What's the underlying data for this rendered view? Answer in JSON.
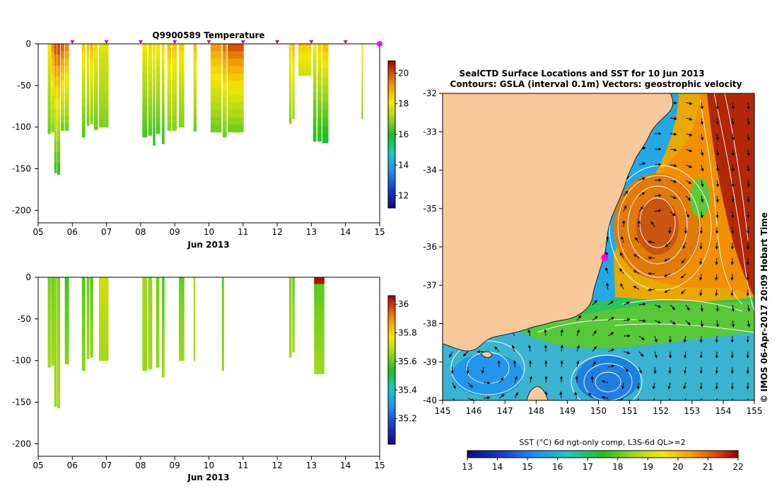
{
  "colors": {
    "land": "#f9c89b",
    "frame": "#000000",
    "marker": "#ff00ff",
    "white_contour": "#ffffff"
  },
  "chart_data": [
    {
      "type": "heatmap",
      "id": "temperature-section",
      "title": "Q9900589  Temperature",
      "xlabel": "Jun 2013",
      "xticks": [
        "05",
        "06",
        "07",
        "08",
        "09",
        "10",
        "11",
        "12",
        "13",
        "14",
        "15"
      ],
      "x_range": [
        5,
        15
      ],
      "y_range": [
        -215,
        0
      ],
      "yticks": [
        0,
        -50,
        -100,
        -150,
        -200
      ],
      "colorbar": {
        "min": 11.2,
        "max": 20.8,
        "ticks": [
          12,
          14,
          16,
          18,
          20
        ],
        "colormap": "jet"
      },
      "markers_x": [
        6,
        7,
        8,
        9,
        10,
        11,
        12,
        13,
        14,
        15
      ],
      "profiles": [
        {
          "x": 5.28,
          "w": 0.09,
          "depth": 108,
          "top": 18.2,
          "bottom": 16.6
        },
        {
          "x": 5.38,
          "w": 0.09,
          "depth": 106,
          "top": 19.5,
          "bottom": 16.8
        },
        {
          "x": 5.47,
          "w": 0.08,
          "depth": 155,
          "top": 20.2,
          "bottom": 16.2
        },
        {
          "x": 5.56,
          "w": 0.08,
          "depth": 157,
          "top": 20.4,
          "bottom": 16.0
        },
        {
          "x": 5.66,
          "w": 0.1,
          "depth": 104,
          "top": 20.1,
          "bottom": 16.6
        },
        {
          "x": 5.78,
          "w": 0.12,
          "depth": 104,
          "top": 19.6,
          "bottom": 16.6
        },
        {
          "x": 6.28,
          "w": 0.1,
          "depth": 112,
          "top": 18.6,
          "bottom": 16.4
        },
        {
          "x": 6.42,
          "w": 0.08,
          "depth": 98,
          "top": 18.8,
          "bottom": 16.6
        },
        {
          "x": 6.52,
          "w": 0.09,
          "depth": 96,
          "top": 19.0,
          "bottom": 16.8
        },
        {
          "x": 6.63,
          "w": 0.12,
          "depth": 103,
          "top": 18.4,
          "bottom": 16.6
        },
        {
          "x": 6.78,
          "w": 0.28,
          "depth": 100,
          "top": 18.0,
          "bottom": 16.8
        },
        {
          "x": 8.05,
          "w": 0.14,
          "depth": 112,
          "top": 18.2,
          "bottom": 16.3
        },
        {
          "x": 8.22,
          "w": 0.12,
          "depth": 110,
          "top": 18.4,
          "bottom": 16.4
        },
        {
          "x": 8.36,
          "w": 0.07,
          "depth": 122,
          "top": 18.5,
          "bottom": 16.0
        },
        {
          "x": 8.45,
          "w": 0.12,
          "depth": 108,
          "top": 18.3,
          "bottom": 16.4
        },
        {
          "x": 8.62,
          "w": 0.08,
          "depth": 120,
          "top": 18.5,
          "bottom": 16.2
        },
        {
          "x": 8.78,
          "w": 0.12,
          "depth": 104,
          "top": 18.8,
          "bottom": 16.8
        },
        {
          "x": 8.92,
          "w": 0.14,
          "depth": 104,
          "top": 18.7,
          "bottom": 16.8
        },
        {
          "x": 9.12,
          "w": 0.16,
          "depth": 100,
          "top": 18.5,
          "bottom": 16.8
        },
        {
          "x": 9.55,
          "w": 0.09,
          "depth": 105,
          "top": 18.9,
          "bottom": 16.6
        },
        {
          "x": 10.05,
          "w": 0.32,
          "depth": 106,
          "top": 19.4,
          "bottom": 16.6
        },
        {
          "x": 10.4,
          "w": 0.12,
          "depth": 112,
          "top": 19.8,
          "bottom": 16.6
        },
        {
          "x": 10.55,
          "w": 0.47,
          "depth": 106,
          "top": 20.2,
          "bottom": 16.6
        },
        {
          "x": 12.35,
          "w": 0.07,
          "depth": 96,
          "top": 18.6,
          "bottom": 16.8
        },
        {
          "x": 12.44,
          "w": 0.07,
          "depth": 90,
          "top": 18.9,
          "bottom": 17.0
        },
        {
          "x": 12.62,
          "w": 0.38,
          "depth": 38,
          "top": 18.6,
          "bottom": 17.6
        },
        {
          "x": 13.05,
          "w": 0.1,
          "depth": 117,
          "top": 18.3,
          "bottom": 16.0
        },
        {
          "x": 13.18,
          "w": 0.12,
          "depth": 117,
          "top": 18.6,
          "bottom": 16.0
        },
        {
          "x": 13.32,
          "w": 0.18,
          "depth": 119,
          "top": 18.9,
          "bottom": 15.8
        },
        {
          "x": 14.47,
          "w": 0.04,
          "depth": 90,
          "top": 18.4,
          "bottom": 16.8
        }
      ]
    },
    {
      "type": "heatmap",
      "id": "salinity-section",
      "title": "",
      "xlabel": "Jun 2013",
      "xticks": [
        "05",
        "06",
        "07",
        "08",
        "09",
        "10",
        "11",
        "12",
        "13",
        "14",
        "15"
      ],
      "x_range": [
        5,
        15
      ],
      "y_range": [
        -215,
        0
      ],
      "yticks": [
        0,
        -50,
        -100,
        -150,
        -200
      ],
      "colorbar": {
        "min": 35.02,
        "max": 36.06,
        "ticks": [
          35.2,
          35.4,
          35.6,
          35.8,
          36
        ],
        "colormap": "jet"
      },
      "profiles": [
        {
          "x": 5.28,
          "w": 0.09,
          "depth": 108,
          "top": 35.62,
          "bottom": 35.66
        },
        {
          "x": 5.38,
          "w": 0.09,
          "depth": 106,
          "top": 35.6,
          "bottom": 35.66
        },
        {
          "x": 5.47,
          "w": 0.08,
          "depth": 155,
          "top": 35.64,
          "bottom": 35.66
        },
        {
          "x": 5.56,
          "w": 0.08,
          "depth": 157,
          "top": 35.62,
          "bottom": 35.67
        },
        {
          "x": 5.78,
          "w": 0.12,
          "depth": 104,
          "top": 35.56,
          "bottom": 35.64
        },
        {
          "x": 6.28,
          "w": 0.1,
          "depth": 112,
          "top": 35.58,
          "bottom": 35.64
        },
        {
          "x": 6.42,
          "w": 0.08,
          "depth": 98,
          "top": 35.6,
          "bottom": 35.66
        },
        {
          "x": 6.52,
          "w": 0.09,
          "depth": 96,
          "top": 35.58,
          "bottom": 35.65
        },
        {
          "x": 6.78,
          "w": 0.28,
          "depth": 100,
          "top": 35.72,
          "bottom": 35.66
        },
        {
          "x": 8.05,
          "w": 0.14,
          "depth": 112,
          "top": 35.66,
          "bottom": 35.65
        },
        {
          "x": 8.22,
          "w": 0.12,
          "depth": 110,
          "top": 35.64,
          "bottom": 35.66
        },
        {
          "x": 8.45,
          "w": 0.1,
          "depth": 108,
          "top": 35.62,
          "bottom": 35.65
        },
        {
          "x": 8.62,
          "w": 0.08,
          "depth": 120,
          "top": 35.58,
          "bottom": 35.66
        },
        {
          "x": 9.12,
          "w": 0.16,
          "depth": 100,
          "top": 35.6,
          "bottom": 35.66
        },
        {
          "x": 9.55,
          "w": 0.05,
          "depth": 100,
          "top": 35.68,
          "bottom": 35.66
        },
        {
          "x": 10.38,
          "w": 0.06,
          "depth": 112,
          "top": 35.6,
          "bottom": 35.64
        },
        {
          "x": 12.35,
          "w": 0.07,
          "depth": 96,
          "top": 35.62,
          "bottom": 35.66
        },
        {
          "x": 12.44,
          "w": 0.07,
          "depth": 90,
          "top": 35.6,
          "bottom": 35.66
        },
        {
          "x": 13.08,
          "w": 0.3,
          "depth": 116,
          "top": 35.58,
          "bottom": 35.66,
          "cap": 36.04
        }
      ]
    },
    {
      "type": "heatmap",
      "id": "sst-map",
      "title": "SealCTD Surface Locations and SST for 10 Jun 2013",
      "subtitle": "Contours: GSLA (interval 0.1m)  Vectors: geostrophic velocity",
      "xticks": [
        "145",
        "146",
        "147",
        "148",
        "149",
        "150",
        "151",
        "152",
        "153",
        "154",
        "155"
      ],
      "yticks": [
        "-32",
        "-33",
        "-34",
        "-35",
        "-36",
        "-37",
        "-38",
        "-39",
        "-40"
      ],
      "x_range": [
        145,
        155
      ],
      "y_range": [
        -40,
        -32
      ],
      "colorbar_label": "SST (°C) 6d ngt-only comp, L3S-6d QL>=2",
      "colorbar": {
        "min": 13,
        "max": 22,
        "ticks": [
          "13",
          "14",
          "15",
          "16",
          "17",
          "18",
          "19",
          "20",
          "21",
          "22"
        ],
        "colormap": "jet"
      },
      "seal_location": {
        "lon": 150.2,
        "lat": -36.28
      },
      "credit": "© IMOS 06-Apr-2017 20:09 Hobart Time"
    }
  ]
}
